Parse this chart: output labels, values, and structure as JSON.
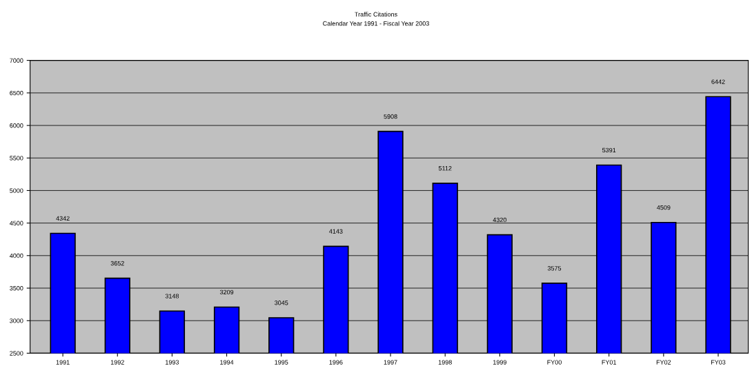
{
  "chart_data": {
    "type": "bar",
    "title": "Traffic Citations",
    "subtitle": "Calendar Year 1991 - Fiscal Year 2003",
    "categories": [
      "1991",
      "1992",
      "1993",
      "1994",
      "1995",
      "1996",
      "1997",
      "1998",
      "1999",
      "FY00",
      "FY01",
      "FY02",
      "FY03"
    ],
    "values": [
      4342,
      3652,
      3148,
      3209,
      3045,
      4143,
      5908,
      5112,
      4320,
      3575,
      5391,
      4509,
      6442
    ],
    "color": "#0000ff",
    "ylim": [
      2500,
      7000
    ],
    "yticks": [
      2500,
      3000,
      3500,
      4000,
      4500,
      5000,
      5500,
      6000,
      6500,
      7000
    ],
    "grid": "y",
    "data_labels": true
  }
}
